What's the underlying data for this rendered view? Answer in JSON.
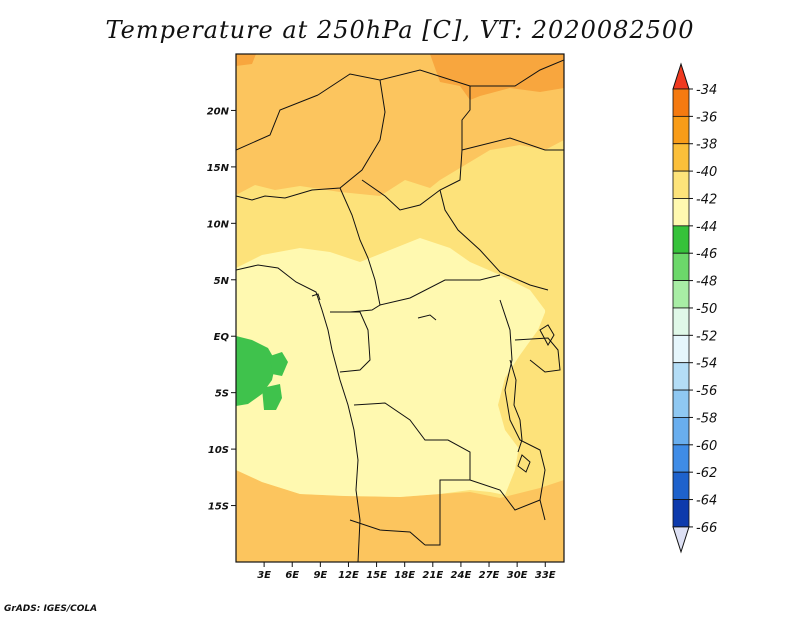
{
  "title": "Temperature at 250hPa [C], VT: 2020082500",
  "footer": "GrADS: IGES/COLA",
  "map": {
    "lon_range": [
      0,
      35
    ],
    "lat_range": [
      -20,
      25
    ],
    "lon_ticks": [
      "3E",
      "6E",
      "9E",
      "12E",
      "15E",
      "18E",
      "21E",
      "24E",
      "27E",
      "30E",
      "33E"
    ],
    "lat_ticks": [
      "20N",
      "15N",
      "10N",
      "5N",
      "EQ",
      "5S",
      "10S",
      "15S"
    ],
    "background_level": "-42 to -40",
    "field_colors": {
      "band_-44_-42": "#fff9b0",
      "band_-42_-40": "#fde27a",
      "band_-40_-38": "#fcc55e",
      "band_-38_-36": "#f8a63e",
      "band_-46_-44": "#3fc24c"
    }
  },
  "colorbar": {
    "labels": [
      "-34",
      "-36",
      "-38",
      "-40",
      "-42",
      "-44",
      "-46",
      "-48",
      "-50",
      "-52",
      "-54",
      "-56",
      "-58",
      "-60",
      "-62",
      "-64",
      "-66"
    ],
    "colors": [
      "#f03a20",
      "#f57a10",
      "#f89c18",
      "#fbbf3a",
      "#fde37a",
      "#fff9b0",
      "#36c23a",
      "#6cd86a",
      "#a8eda5",
      "#e0f8e8",
      "#e6f6fc",
      "#b4ddf6",
      "#8fc8f2",
      "#69aeee",
      "#3f8ce6",
      "#1e62cc",
      "#0d3aac",
      "#06146e",
      "#dde0f4"
    ],
    "top_arrow_color": "#f03a20",
    "bottom_arrow_color": "#dde0f4"
  }
}
